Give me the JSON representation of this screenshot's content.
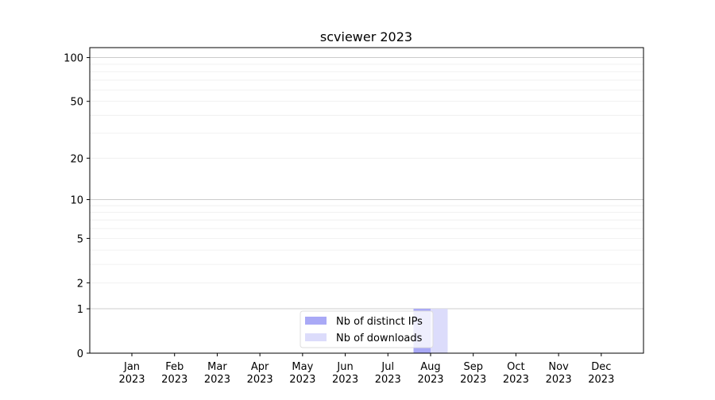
{
  "chart_data": {
    "type": "bar",
    "title": "scviewer 2023",
    "xlabel": "",
    "ylabel": "",
    "y_scale": "log10(1+y)",
    "ylim": [
      0,
      117
    ],
    "yticks": [
      0,
      1,
      2,
      5,
      10,
      20,
      50,
      100
    ],
    "grid": true,
    "legend_position": "lower-center",
    "categories": [
      "Jan\n2023",
      "Feb\n2023",
      "Mar\n2023",
      "Apr\n2023",
      "May\n2023",
      "Jun\n2023",
      "Jul\n2023",
      "Aug\n2023",
      "Sep\n2023",
      "Oct\n2023",
      "Nov\n2023",
      "Dec\n2023"
    ],
    "series": [
      {
        "name": "Nb of distinct IPs",
        "color": "#a9a9f6",
        "values": [
          0,
          0,
          0,
          0,
          0,
          0,
          0,
          1,
          0,
          0,
          0,
          0
        ]
      },
      {
        "name": "Nb of downloads",
        "color": "#dcdcfb",
        "values": [
          0,
          0,
          0,
          0,
          0,
          0,
          0,
          1,
          0,
          0,
          0,
          0
        ]
      }
    ]
  }
}
